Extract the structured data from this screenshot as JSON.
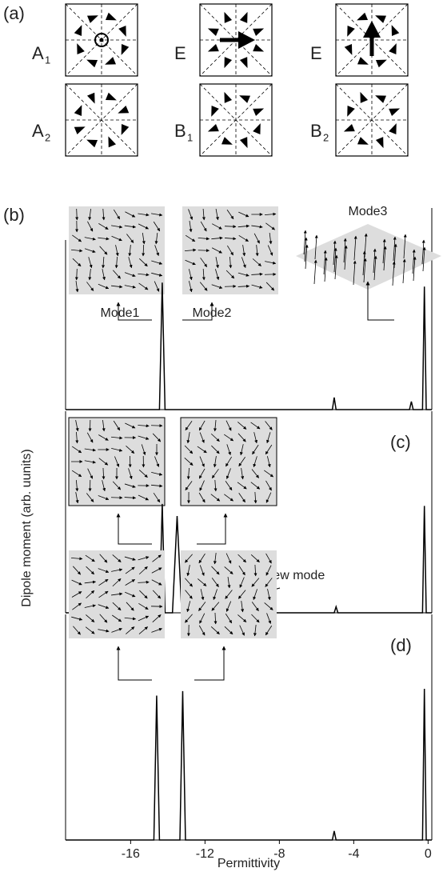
{
  "panel_a": {
    "label": "(a)",
    "modes": [
      {
        "name": "A",
        "sub": "1"
      },
      {
        "name": "E"
      },
      {
        "name": "E"
      },
      {
        "name": "A",
        "sub": "2"
      },
      {
        "name": "B",
        "sub": "1"
      },
      {
        "name": "B",
        "sub": "2"
      }
    ]
  },
  "chart_data": [
    {
      "type": "line",
      "panel_label": "(b)",
      "color": "#000000",
      "xlim": [
        -19.5,
        0.2
      ],
      "ylim": [
        0,
        1
      ],
      "annotations": [
        "Mode1",
        "Mode2",
        "Mode3"
      ],
      "x": [
        -19.5,
        -14.45,
        -14.3,
        -14.15,
        -5.15,
        -5.05,
        -4.95,
        -1.0,
        -0.9,
        -0.8,
        -0.3,
        -0.2,
        -0.1,
        0.2
      ],
      "values": [
        0,
        0,
        0.63,
        0,
        0,
        0.06,
        0,
        0,
        0.04,
        0,
        0,
        0.61,
        0,
        0
      ]
    },
    {
      "type": "line",
      "panel_label": "(c)",
      "color": "#000000",
      "xlim": [
        -19.5,
        0.2
      ],
      "ylim": [
        0,
        1
      ],
      "annotations": [
        "New mode"
      ],
      "ylabel": "Dipole moment (arb. uunits)",
      "x": [
        -19.5,
        -14.45,
        -14.3,
        -14.15,
        -13.75,
        -13.5,
        -13.25,
        -10.9,
        -10.7,
        -10.5,
        -5.05,
        -4.95,
        -4.85,
        -0.3,
        -0.2,
        -0.1,
        0.2
      ],
      "values": [
        0,
        0,
        0.54,
        0,
        0,
        0.48,
        0,
        0,
        0.05,
        0,
        0,
        0.03,
        0,
        0,
        0.53,
        0,
        0
      ]
    },
    {
      "type": "line",
      "panel_label": "(d)",
      "color": "#000000",
      "xlim": [
        -19.5,
        0.2
      ],
      "ylim": [
        0,
        1
      ],
      "xlabel": "Permittivity",
      "xticks": [
        -16,
        -12,
        -8,
        -4,
        0
      ],
      "x": [
        -19.5,
        -14.75,
        -14.6,
        -14.45,
        -13.35,
        -13.2,
        -13.05,
        -5.15,
        -5.05,
        -4.95,
        -0.3,
        -0.2,
        -0.1,
        0.2
      ],
      "values": [
        0,
        0,
        0.64,
        0,
        0,
        0.66,
        0,
        0,
        0.04,
        0,
        0,
        0.67,
        0,
        0
      ]
    }
  ]
}
